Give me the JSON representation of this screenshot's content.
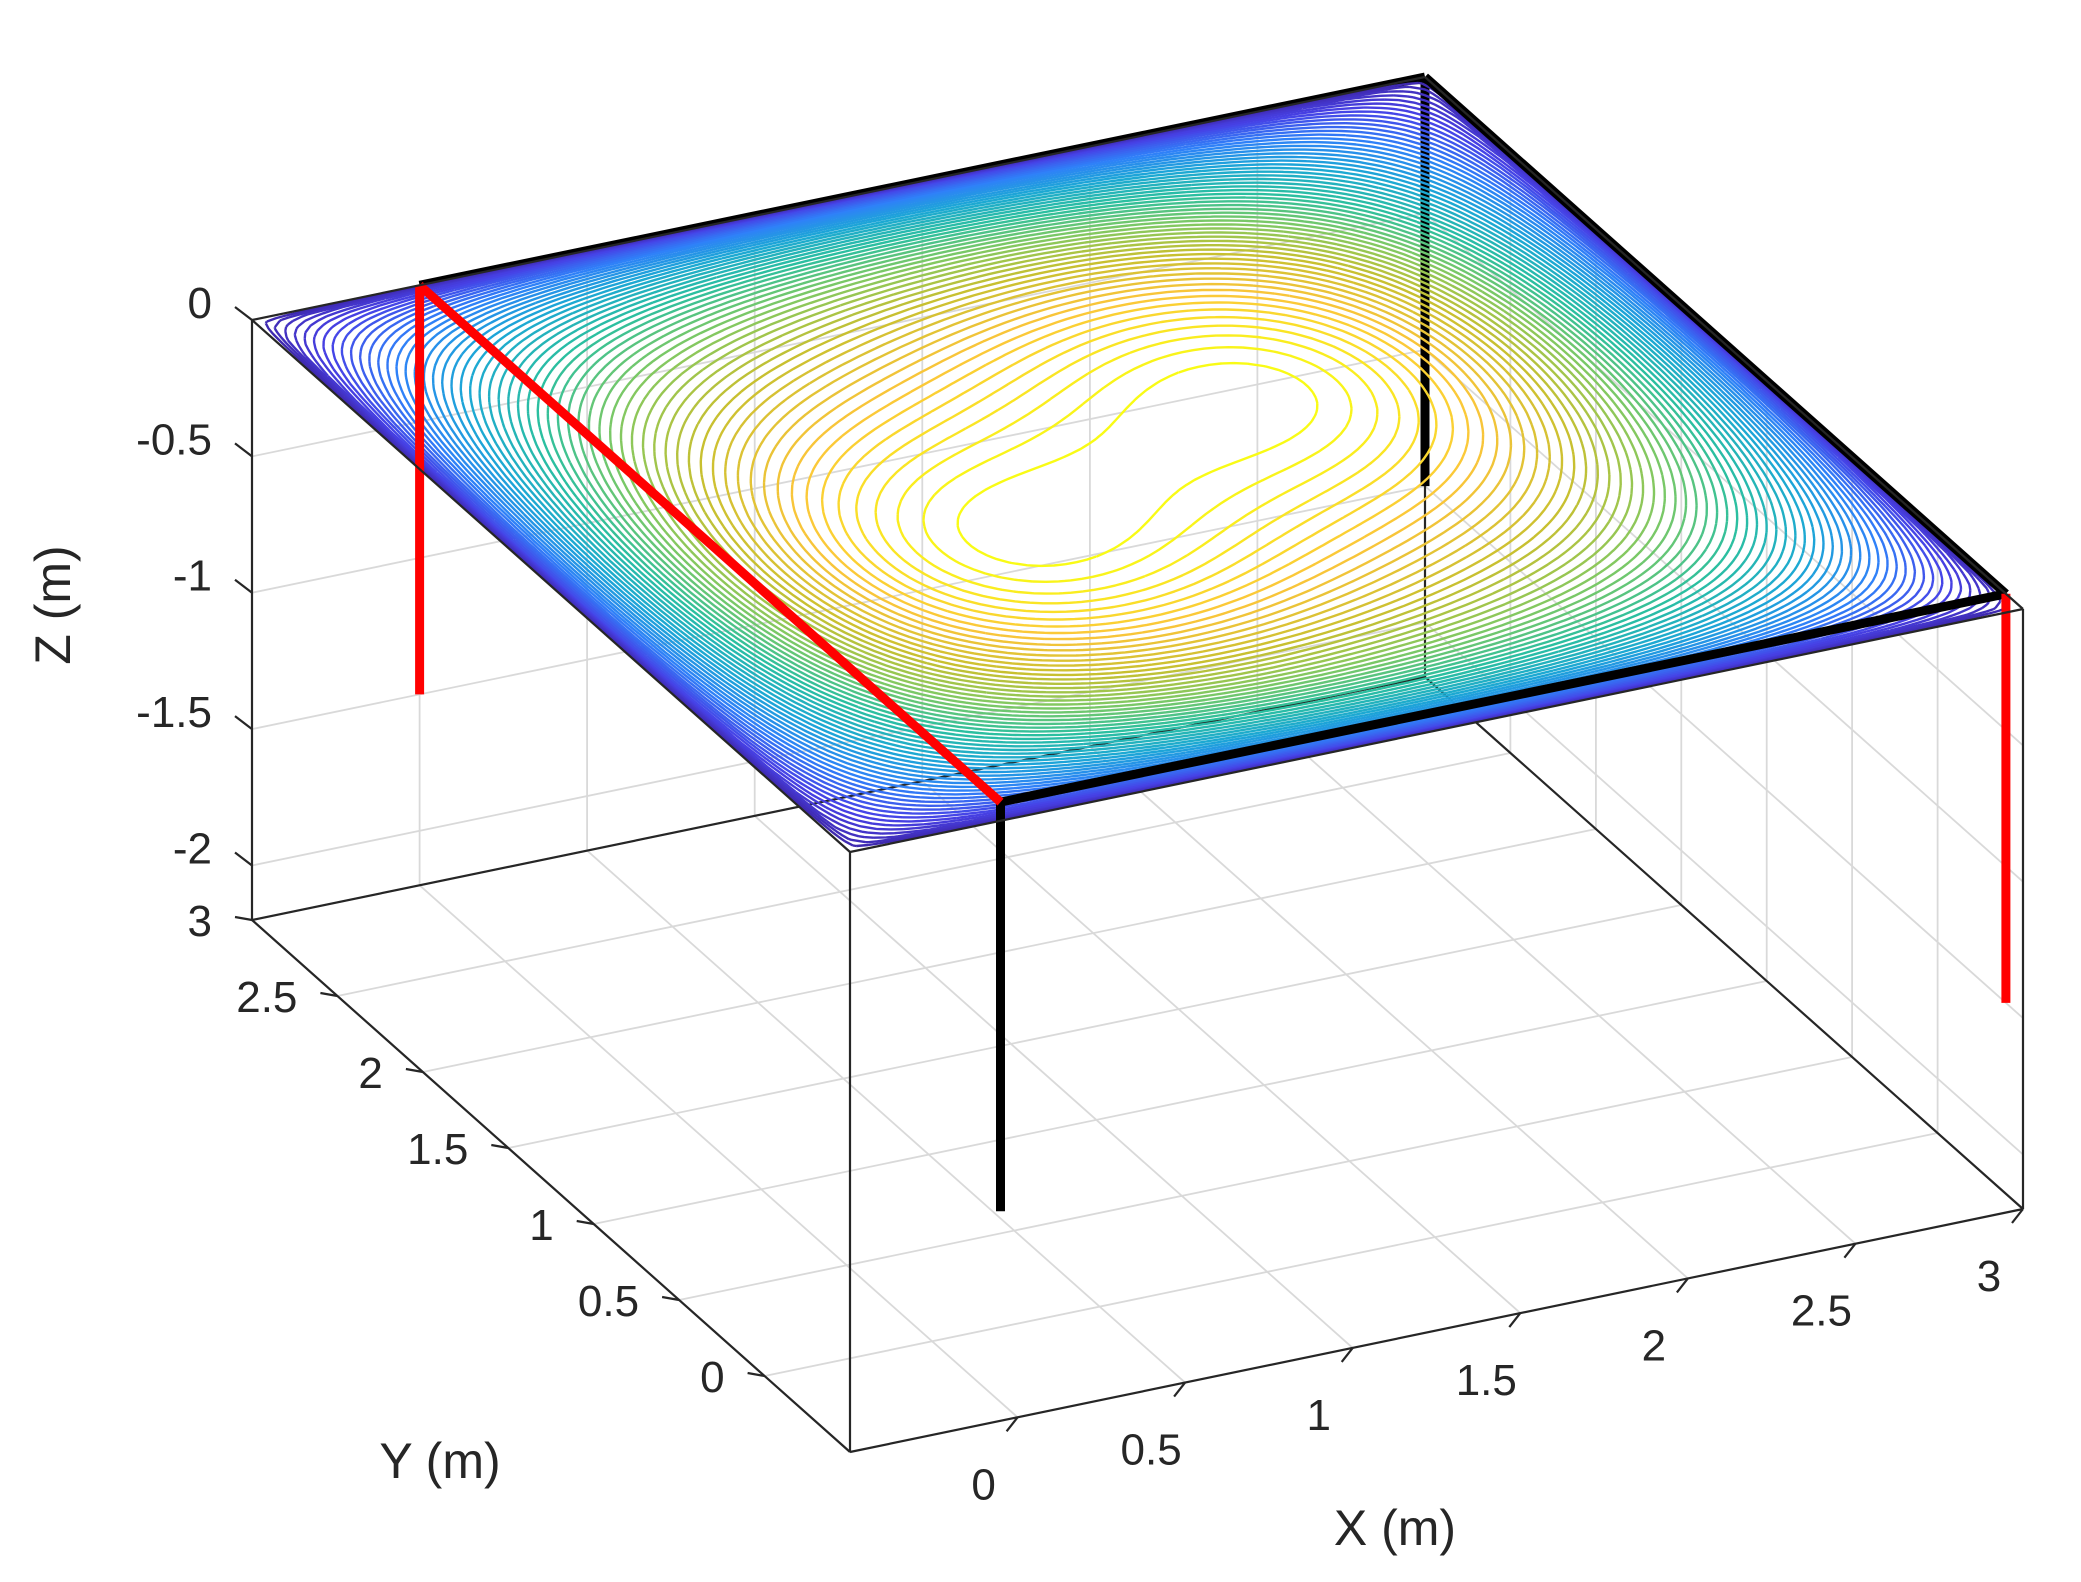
{
  "chart_data": {
    "type": "contour3d",
    "title": "",
    "xlabel": "X  (m)",
    "ylabel": "Y  (m)",
    "zlabel": "Z  (m)",
    "xlim": [
      -0.5,
      3
    ],
    "ylim": [
      -0.5,
      3
    ],
    "zlim": [
      -2.2,
      0
    ],
    "xticks": [
      0,
      0.5,
      1,
      1.5,
      2,
      2.5,
      3
    ],
    "xtick_labels": [
      "0",
      "0.5",
      "1",
      "1.5",
      "2",
      "2.5",
      "3"
    ],
    "yticks": [
      0,
      0.5,
      1,
      1.5,
      2,
      2.5,
      3
    ],
    "ytick_labels": [
      "0",
      "0.5",
      "1",
      "1.5",
      "2",
      "2.5",
      "3"
    ],
    "zticks": [
      0,
      -0.5,
      -1,
      -1.5,
      -2
    ],
    "ztick_labels": [
      "0",
      "-0.5",
      "-1",
      "-1.5",
      "-2"
    ],
    "grid": true,
    "contour_plane_z": 0,
    "contour_field": {
      "domain_x": [
        -0.5,
        3
      ],
      "domain_y": [
        -0.5,
        3
      ],
      "shape": "zero on the boundary, maximum in the interior with an S-shaped pair of lobes",
      "levels": 60,
      "colormap": [
        "#3e26a8",
        "#4741e6",
        "#2f81f8",
        "#1ca7d6",
        "#2bbfa0",
        "#7fc963",
        "#c8c030",
        "#fbc53a",
        "#f9fb15"
      ]
    },
    "frames": [
      {
        "color": "#000000",
        "lines": [
          {
            "from": [
              0,
              -0.4,
              0
            ],
            "to": [
              0,
              -0.4,
              -1.5
            ]
          },
          {
            "from": [
              0,
              -0.4,
              0
            ],
            "to": [
              3,
              -0.4,
              0
            ]
          },
          {
            "from": [
              3,
              -0.4,
              0
            ],
            "to": [
              3,
              3,
              0
            ]
          },
          {
            "from": [
              3,
              3,
              0
            ],
            "to": [
              0,
              3,
              0
            ]
          },
          {
            "from": [
              3,
              3,
              0
            ],
            "to": [
              3,
              3,
              -1.5
            ]
          }
        ]
      },
      {
        "color": "#ff0000",
        "lines": [
          {
            "from": [
              0,
              3,
              0
            ],
            "to": [
              0,
              -0.4,
              0
            ]
          },
          {
            "from": [
              0,
              3,
              0
            ],
            "to": [
              0,
              3,
              -1.5
            ]
          },
          {
            "from": [
              3,
              -0.4,
              0
            ],
            "to": [
              3,
              -0.4,
              -1.5
            ]
          }
        ]
      }
    ]
  }
}
